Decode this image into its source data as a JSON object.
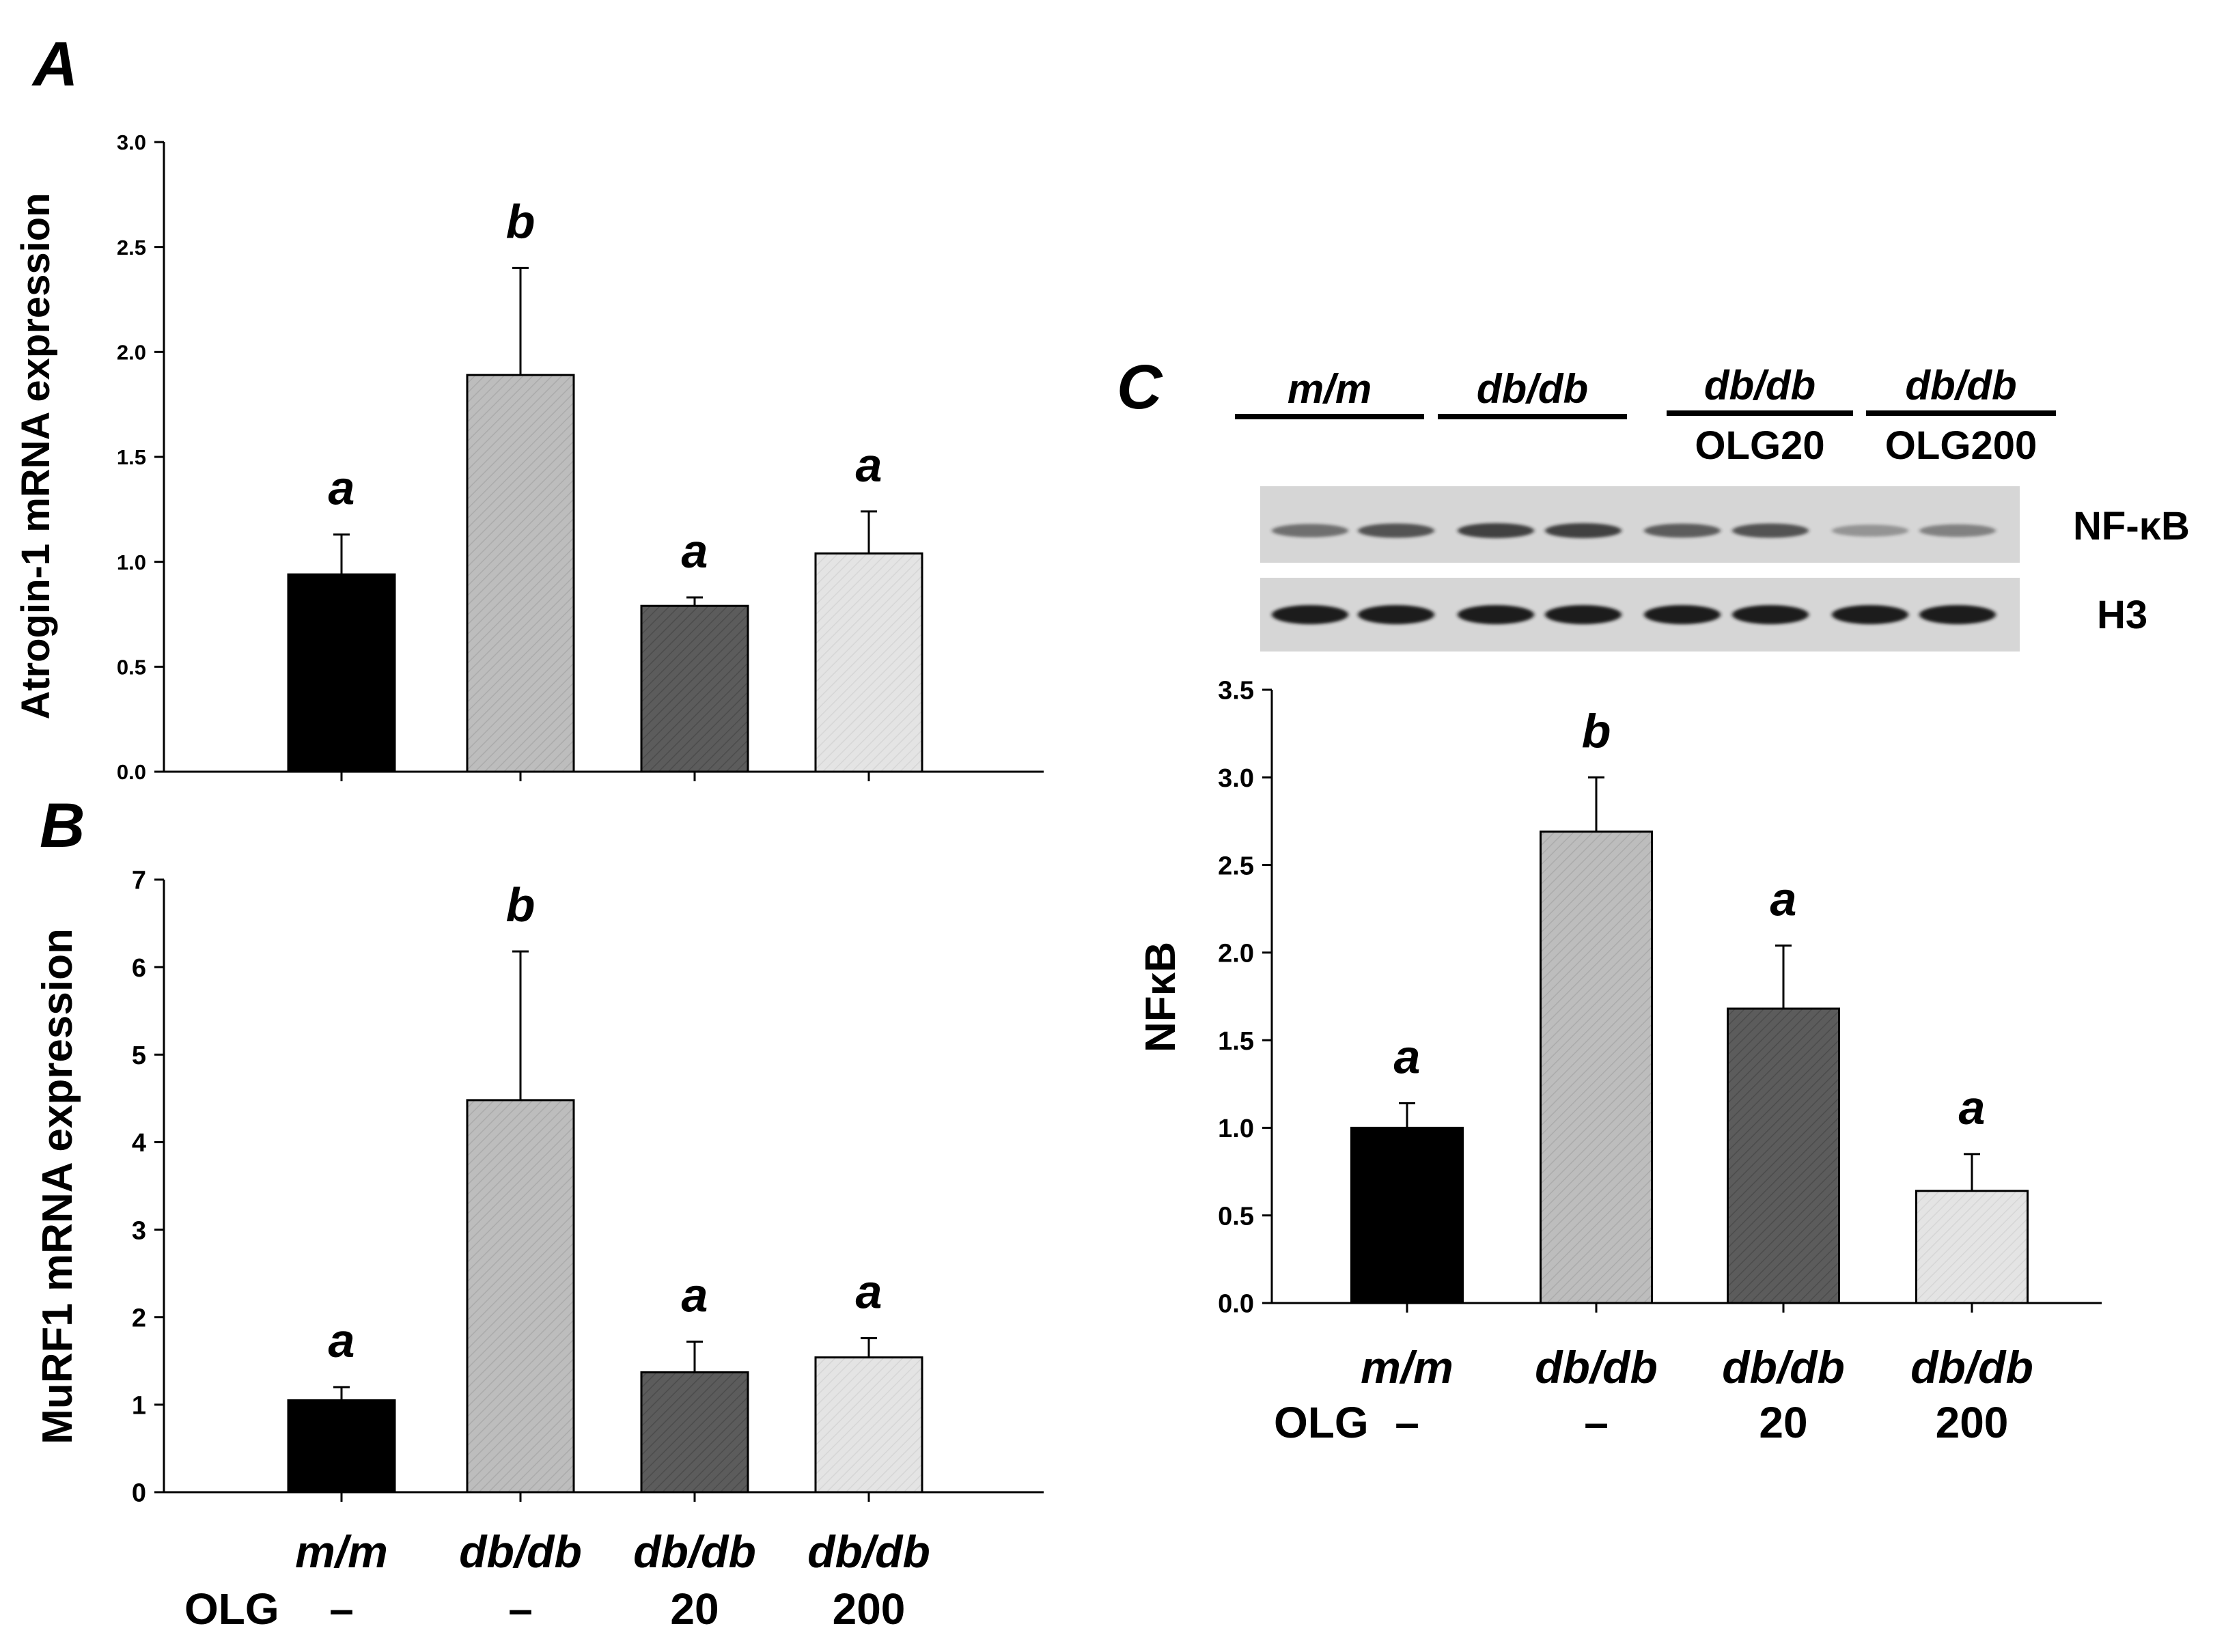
{
  "colors": {
    "ink": "#000000",
    "bar_mm": "#000000",
    "bar_dbdb": "#bdbdbd",
    "bar_olg20": "#5c5c5c",
    "bar_olg200": "#e4e4e4",
    "blot_bg": "#d6d6d6",
    "band": "#1e1e1e"
  },
  "chart_data": [
    {
      "panel": "A",
      "type": "bar",
      "categories": [
        "m/m",
        "db/db",
        "db/db OLG 20",
        "db/db OLG 200"
      ],
      "values": [
        0.94,
        1.89,
        0.79,
        1.04
      ],
      "errors": [
        0.19,
        0.51,
        0.04,
        0.2
      ],
      "significance": [
        "a",
        "b",
        "a",
        "a"
      ],
      "ylabel": "Atrogin-1 mRNA expression",
      "ylim": [
        0,
        3.0
      ],
      "yticks": [
        "0.0",
        "0.5",
        "1.0",
        "1.5",
        "2.0",
        "2.5",
        "3.0"
      ]
    },
    {
      "panel": "B",
      "type": "bar",
      "categories": [
        "m/m",
        "db/db",
        "db/db OLG 20",
        "db/db OLG 200"
      ],
      "values": [
        1.05,
        4.48,
        1.37,
        1.54
      ],
      "errors": [
        0.15,
        1.7,
        0.35,
        0.22
      ],
      "significance": [
        "a",
        "b",
        "a",
        "a"
      ],
      "ylabel": "MuRF1 mRNA expression",
      "ylim": [
        0,
        7
      ],
      "yticks": [
        "0",
        "1",
        "2",
        "3",
        "4",
        "5",
        "6",
        "7"
      ],
      "group_labels": [
        "m/m",
        "db/db",
        "db/db",
        "db/db"
      ],
      "olg_label": "OLG",
      "olg_values": [
        "–",
        "–",
        "20",
        "200"
      ]
    },
    {
      "panel": "C",
      "type": "bar",
      "categories": [
        "m/m",
        "db/db",
        "db/db OLG 20",
        "db/db OLG 200"
      ],
      "values": [
        1.0,
        2.69,
        1.68,
        0.64
      ],
      "errors": [
        0.14,
        0.31,
        0.36,
        0.21
      ],
      "significance": [
        "a",
        "b",
        "a",
        "a"
      ],
      "ylabel": "NFκB",
      "ylim": [
        0,
        3.5
      ],
      "yticks": [
        "0.0",
        "0.5",
        "1.0",
        "1.5",
        "2.0",
        "2.5",
        "3.0",
        "3.5"
      ],
      "group_labels": [
        "m/m",
        "db/db",
        "db/db",
        "db/db"
      ],
      "olg_label": "OLG",
      "olg_values": [
        "–",
        "–",
        "20",
        "200"
      ]
    }
  ],
  "blot": {
    "lane_groups": [
      {
        "name": "m/m",
        "treatment": ""
      },
      {
        "name": "db/db",
        "treatment": ""
      },
      {
        "name": "db/db",
        "treatment": "OLG20"
      },
      {
        "name": "db/db",
        "treatment": "OLG200"
      }
    ],
    "rows": [
      {
        "label": "NF-κB",
        "intensities": [
          0.55,
          0.7,
          0.8,
          0.8,
          0.65,
          0.7,
          0.35,
          0.45
        ]
      },
      {
        "label": "H3",
        "intensities": [
          1,
          1,
          1,
          1,
          1,
          1,
          1,
          1
        ]
      }
    ]
  }
}
